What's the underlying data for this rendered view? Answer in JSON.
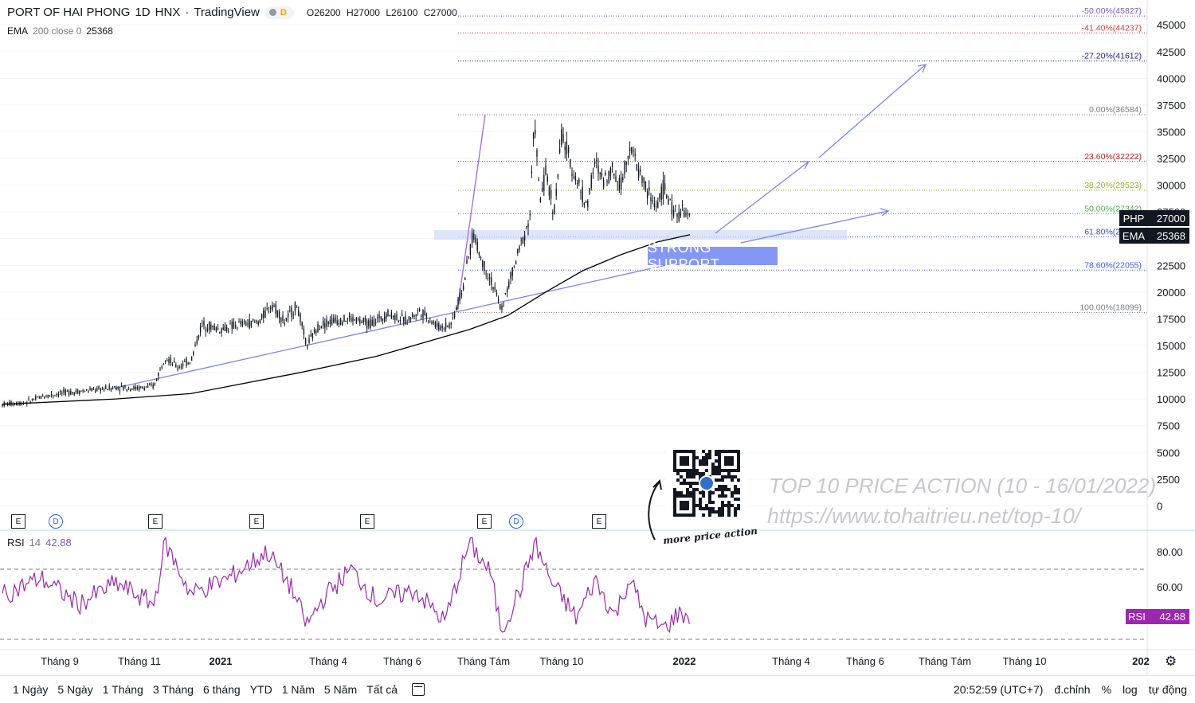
{
  "header": {
    "symbol": "PORT OF HAI PHONG",
    "interval": "1D",
    "exchange": "HNX",
    "source": "TradingView",
    "badge_d": "D",
    "ohlc": {
      "o_label": "O",
      "o": "26200",
      "h_label": "H",
      "h": "27000",
      "l_label": "L",
      "l": "26100",
      "c_label": "C",
      "c": "27000"
    }
  },
  "ema_legend": {
    "name": "EMA",
    "params": "200 close 0",
    "value": "25368"
  },
  "rsi_legend": {
    "name": "RSI",
    "period": "14",
    "value": "42.88"
  },
  "price_tags": [
    {
      "label": "PHP",
      "value": "27000"
    },
    {
      "label": "EMA",
      "value": "25368"
    }
  ],
  "rsi_tag": {
    "label": "RSI",
    "value": "42.88"
  },
  "annotations": {
    "support": "STRONG SUPPORT",
    "promo_title": "TOP 10 PRICE ACTION (10 - 16/01/2022)",
    "promo_url": "https://www.tohaitrieu.net/top-10/",
    "handwriting": "more price action"
  },
  "events": [
    "E",
    "D",
    "E",
    "E",
    "E",
    "E",
    "D",
    "E"
  ],
  "bottom_bar": {
    "ranges": [
      "1 Ngày",
      "5 Ngày",
      "1 Tháng",
      "3 Tháng",
      "6 tháng",
      "YTD",
      "1 Năm",
      "5 Năm",
      "Tất cả"
    ],
    "time": "20:52:59 (UTC+7)",
    "adjust": "đ.chỉnh",
    "percent": "%",
    "log": "log",
    "auto": "tự động"
  },
  "colors": {
    "fib_minus50": "#7e57c2",
    "fib_minus41": "#e53935",
    "fib_minus27": "#1a237e",
    "fib_0": "#787b86",
    "fib_236": "#b71c1c",
    "fib_382": "#9bb52d",
    "fib_50": "#4caf50",
    "fib_618": "#3f51b5",
    "fib_786": "#3d5afe",
    "fib_100": "#787b86",
    "ema": "#000000",
    "rsi": "#9c27b0",
    "trend": "#7b86e8"
  },
  "chart_data": {
    "type": "candlestick",
    "title": "PORT OF HAI PHONG 1D HNX",
    "x_ticks": [
      "Tháng 9",
      "Tháng 11",
      "2021",
      "Tháng 4",
      "Tháng 6",
      "Tháng Tám",
      "Tháng 10",
      "2022",
      "Tháng 4",
      "Tháng 6",
      "Tháng Tám",
      "Tháng 10",
      "202"
    ],
    "y_ticks": [
      0,
      2500,
      5000,
      7500,
      10000,
      12500,
      15000,
      17500,
      20000,
      22500,
      25000,
      27500,
      30000,
      32500,
      35000,
      37500,
      40000,
      42500,
      45000
    ],
    "ylim": [
      0,
      46500
    ],
    "price_path": [
      [
        "2020-07-01",
        9500
      ],
      [
        "2020-07-20",
        9700
      ],
      [
        "2020-08-05",
        10300
      ],
      [
        "2020-08-20",
        10600
      ],
      [
        "2020-09-10",
        10800
      ],
      [
        "2020-10-01",
        11100
      ],
      [
        "2020-10-20",
        11000
      ],
      [
        "2020-11-01",
        11200
      ],
      [
        "2020-11-10",
        14000
      ],
      [
        "2020-11-20",
        13000
      ],
      [
        "2020-12-01",
        13600
      ],
      [
        "2020-12-10",
        17000
      ],
      [
        "2020-12-25",
        16500
      ],
      [
        "2021-01-10",
        17000
      ],
      [
        "2021-01-25",
        17200
      ],
      [
        "2021-02-05",
        18900
      ],
      [
        "2021-02-15",
        17200
      ],
      [
        "2021-02-25",
        18800
      ],
      [
        "2021-03-05",
        15000
      ],
      [
        "2021-03-15",
        16900
      ],
      [
        "2021-03-25",
        17300
      ],
      [
        "2021-04-10",
        17500
      ],
      [
        "2021-04-25",
        17000
      ],
      [
        "2021-05-10",
        18000
      ],
      [
        "2021-05-25",
        17300
      ],
      [
        "2021-06-05",
        18300
      ],
      [
        "2021-06-20",
        16700
      ],
      [
        "2021-06-30",
        17000
      ],
      [
        "2021-07-10",
        20500
      ],
      [
        "2021-07-18",
        25500
      ],
      [
        "2021-07-25",
        23000
      ],
      [
        "2021-08-02",
        21000
      ],
      [
        "2021-08-10",
        18300
      ],
      [
        "2021-08-18",
        21500
      ],
      [
        "2021-08-26",
        24500
      ],
      [
        "2021-09-02",
        27000
      ],
      [
        "2021-09-06",
        36500
      ],
      [
        "2021-09-10",
        28500
      ],
      [
        "2021-09-15",
        31000
      ],
      [
        "2021-09-22",
        27500
      ],
      [
        "2021-09-28",
        34800
      ],
      [
        "2021-10-05",
        32000
      ],
      [
        "2021-10-12",
        30000
      ],
      [
        "2021-10-18",
        28000
      ],
      [
        "2021-10-25",
        32000
      ],
      [
        "2021-11-01",
        30500
      ],
      [
        "2021-11-08",
        31500
      ],
      [
        "2021-11-15",
        30000
      ],
      [
        "2021-11-22",
        33800
      ],
      [
        "2021-11-29",
        31500
      ],
      [
        "2021-12-06",
        29500
      ],
      [
        "2021-12-13",
        28000
      ],
      [
        "2021-12-20",
        29800
      ],
      [
        "2021-12-27",
        27500
      ],
      [
        "2022-01-03",
        27500
      ],
      [
        "2022-01-10",
        27000
      ]
    ],
    "ema_path": [
      [
        "2020-07-01",
        9500
      ],
      [
        "2020-10-01",
        10000
      ],
      [
        "2020-12-01",
        10500
      ],
      [
        "2021-03-01",
        12500
      ],
      [
        "2021-05-01",
        14000
      ],
      [
        "2021-06-15",
        15500
      ],
      [
        "2021-07-15",
        16500
      ],
      [
        "2021-08-15",
        17800
      ],
      [
        "2021-09-15",
        20000
      ],
      [
        "2021-10-15",
        22000
      ],
      [
        "2021-11-15",
        23500
      ],
      [
        "2021-12-15",
        24700
      ],
      [
        "2022-01-10",
        25368
      ]
    ],
    "fibonacci": [
      {
        "level": "-50.00%",
        "price": 45827
      },
      {
        "level": "-41.40%",
        "price": 44237
      },
      {
        "level": "-27.20%",
        "price": 41612
      },
      {
        "level": "0.00%",
        "price": 36584
      },
      {
        "level": "23.60%",
        "price": 32222
      },
      {
        "level": "38.20%",
        "price": 29523
      },
      {
        "level": "50.00%",
        "price": 27342
      },
      {
        "level": "61.80%",
        "price": 25160
      },
      {
        "level": "78.60%",
        "price": 22055
      },
      {
        "level": "100.00%",
        "price": 18099
      }
    ],
    "rsi": {
      "name": "RSI 14",
      "value": 42.88,
      "levels": [
        70,
        30
      ],
      "y_ticks": [
        60,
        80
      ],
      "path": [
        [
          "2020-07-01",
          55
        ],
        [
          "2020-08-01",
          65
        ],
        [
          "2020-09-01",
          50
        ],
        [
          "2020-10-01",
          62
        ],
        [
          "2020-11-01",
          50
        ],
        [
          "2020-11-10",
          85
        ],
        [
          "2020-12-01",
          56
        ],
        [
          "2021-01-01",
          65
        ],
        [
          "2021-02-01",
          80
        ],
        [
          "2021-02-20",
          60
        ],
        [
          "2021-03-05",
          38
        ],
        [
          "2021-03-20",
          55
        ],
        [
          "2021-04-10",
          70
        ],
        [
          "2021-05-01",
          52
        ],
        [
          "2021-06-01",
          58
        ],
        [
          "2021-06-25",
          40
        ],
        [
          "2021-07-15",
          85
        ],
        [
          "2021-08-01",
          68
        ],
        [
          "2021-08-10",
          35
        ],
        [
          "2021-08-25",
          58
        ],
        [
          "2021-09-06",
          85
        ],
        [
          "2021-09-20",
          62
        ],
        [
          "2021-10-10",
          42
        ],
        [
          "2021-10-25",
          64
        ],
        [
          "2021-11-10",
          43
        ],
        [
          "2021-11-22",
          65
        ],
        [
          "2021-12-05",
          42
        ],
        [
          "2021-12-20",
          36
        ],
        [
          "2022-01-01",
          45
        ],
        [
          "2022-01-10",
          42.88
        ]
      ]
    }
  }
}
